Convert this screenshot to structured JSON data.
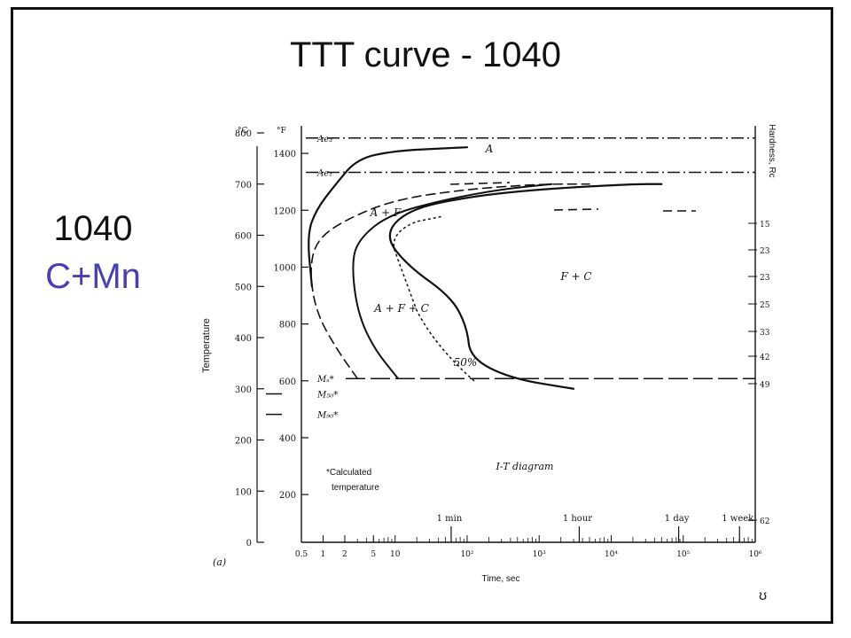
{
  "slide": {
    "title": "TTT curve - 1040",
    "side_label_1": "1040",
    "side_label_2": "C+Mn",
    "page_number": "ʊ",
    "colors": {
      "text": "#111111",
      "accent": "#4a3fb0"
    }
  },
  "chart_data": {
    "type": "line",
    "panel_label": "(a)",
    "diagram_label": "I-T diagram",
    "ylabel": "Temperature",
    "y2label": "Hardness, Rc",
    "xlabel": "Time, sec",
    "x_scale": "log",
    "xlim": [
      0.5,
      1000000
    ],
    "ylim": [
      0,
      800
    ],
    "celsius_ticks": [
      "0",
      "100",
      "200",
      "300",
      "400",
      "500",
      "600",
      "700",
      "800"
    ],
    "fahrenheit_ticks": [
      "200",
      "400",
      "600",
      "800",
      "1000",
      "1200",
      "1400"
    ],
    "temp_units": [
      "°C",
      "°F"
    ],
    "x_ticks": [
      "0.5",
      "1",
      "2",
      "5",
      "10",
      "10²",
      "10³",
      "10⁴",
      "10⁵",
      "10⁶"
    ],
    "time_markers": [
      "1 min",
      "1 hour",
      "1 day",
      "1 week"
    ],
    "hardness_ticks": [
      "15",
      "23",
      "23",
      "25",
      "33",
      "42",
      "49",
      "62"
    ],
    "phase_labels": [
      "A",
      "A + F",
      "F + C",
      "A + F + C",
      "50%"
    ],
    "lines": [
      {
        "label": "Ae₃",
        "temperature_c": 790
      },
      {
        "label": "Ae₁",
        "temperature_c": 723
      },
      {
        "label": "Mₛ*",
        "temperature_c": 320
      },
      {
        "label": "M₅₀*",
        "temperature_c": 290
      },
      {
        "label": "M₉₀*",
        "temperature_c": 250
      }
    ],
    "annotation": [
      "*Calculated",
      "temperature"
    ],
    "series": [
      {
        "points": [
          [
            0.7,
            500
          ],
          [
            0.6,
            600
          ],
          [
            0.8,
            650
          ],
          [
            1.5,
            700
          ],
          [
            3,
            750
          ],
          [
            10,
            765
          ],
          [
            50,
            770
          ],
          [
            100,
            772
          ]
        ]
      },
      {
        "points": [
          [
            3,
            320
          ],
          [
            1.5,
            380
          ],
          [
            0.8,
            450
          ],
          [
            0.65,
            530
          ],
          [
            0.8,
            590
          ],
          [
            2,
            630
          ],
          [
            10,
            670
          ],
          [
            100,
            690
          ],
          [
            1000,
            700
          ],
          [
            5000,
            700
          ]
        ]
      },
      {
        "points": [
          [
            11,
            320
          ],
          [
            5,
            380
          ],
          [
            3,
            450
          ],
          [
            2.5,
            540
          ],
          [
            3,
            590
          ],
          [
            8,
            640
          ],
          [
            50,
            670
          ],
          [
            300,
            690
          ],
          [
            1500,
            700
          ]
        ]
      },
      {
        "points": [
          [
            3000,
            300
          ],
          [
            400,
            320
          ],
          [
            110,
            360
          ],
          [
            100,
            420
          ],
          [
            60,
            480
          ],
          [
            15,
            540
          ],
          [
            7,
            600
          ],
          [
            15,
            650
          ],
          [
            100,
            675
          ],
          [
            1000,
            690
          ],
          [
            20000,
            700
          ],
          [
            50000,
            700
          ]
        ]
      }
    ]
  }
}
